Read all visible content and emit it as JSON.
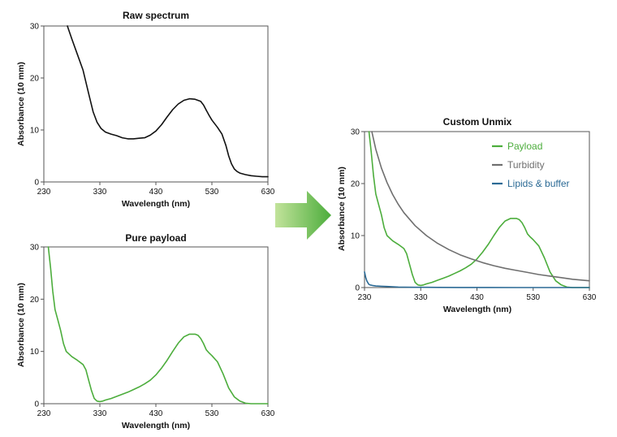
{
  "chart_data": [
    {
      "id": "raw",
      "type": "line",
      "title": "Raw spectrum",
      "xlabel": "Wavelength (nm)",
      "ylabel": "Absorbance (10 mm)",
      "xlim": [
        230,
        630
      ],
      "ylim": [
        0,
        30
      ],
      "xticks": [
        "230",
        "330",
        "430",
        "530",
        "630"
      ],
      "yticks": [
        "0",
        "10",
        "20",
        "30"
      ],
      "grid": false,
      "series": [
        {
          "color": "#111111",
          "x": [
            272,
            280,
            290,
            300,
            310,
            318,
            325,
            332,
            340,
            350,
            360,
            370,
            380,
            390,
            400,
            410,
            420,
            430,
            440,
            450,
            460,
            470,
            480,
            490,
            500,
            510,
            515,
            520,
            525,
            530,
            540,
            548,
            555,
            560,
            565,
            570,
            575,
            580,
            590,
            600,
            610,
            620,
            630
          ],
          "y": [
            30,
            27.5,
            24.5,
            21.5,
            17,
            13.5,
            11.5,
            10.3,
            9.6,
            9.2,
            8.9,
            8.5,
            8.3,
            8.3,
            8.4,
            8.5,
            9.0,
            9.8,
            11,
            12.5,
            13.9,
            15.0,
            15.7,
            16.0,
            15.9,
            15.5,
            14.8,
            13.8,
            12.8,
            11.9,
            10.5,
            9.2,
            7.0,
            5.0,
            3.5,
            2.5,
            2.0,
            1.7,
            1.4,
            1.2,
            1.1,
            1.0,
            1.0
          ]
        }
      ]
    },
    {
      "id": "pure",
      "type": "line",
      "title": "Pure payload",
      "xlabel": "Wavelength (nm)",
      "ylabel": "Absorbance (10 mm)",
      "xlim": [
        230,
        630
      ],
      "ylim": [
        0,
        30
      ],
      "xticks": [
        "230",
        "330",
        "430",
        "530",
        "630"
      ],
      "yticks": [
        "0",
        "10",
        "20",
        "30"
      ],
      "grid": false,
      "series": [
        {
          "color": "#4cad3c",
          "x": [
            238,
            242,
            246,
            250,
            255,
            260,
            265,
            270,
            280,
            290,
            300,
            305,
            310,
            315,
            320,
            325,
            330,
            335,
            340,
            350,
            360,
            370,
            380,
            390,
            400,
            410,
            420,
            430,
            440,
            450,
            460,
            470,
            480,
            490,
            500,
            505,
            510,
            515,
            520,
            525,
            530,
            540,
            550,
            560,
            570,
            580,
            590,
            600,
            610,
            620,
            630
          ],
          "y": [
            30,
            26,
            21.5,
            18,
            16,
            14,
            11.5,
            10.0,
            9.0,
            8.3,
            7.5,
            6.5,
            4.5,
            2.5,
            1.0,
            0.5,
            0.4,
            0.5,
            0.7,
            1.0,
            1.4,
            1.8,
            2.2,
            2.7,
            3.2,
            3.8,
            4.5,
            5.5,
            6.8,
            8.3,
            10.0,
            11.6,
            12.8,
            13.3,
            13.3,
            13.1,
            12.5,
            11.5,
            10.3,
            9.7,
            9.2,
            8.0,
            5.7,
            3.0,
            1.3,
            0.5,
            0.1,
            0.0,
            0.0,
            0.0,
            0.0
          ]
        }
      ]
    },
    {
      "id": "unmix",
      "type": "line",
      "title": "Custom Unmix",
      "xlabel": "Wavelength (nm)",
      "ylabel": "Absorbance (10 mm)",
      "xlim": [
        230,
        630
      ],
      "ylim": [
        0,
        30
      ],
      "xticks": [
        "230",
        "330",
        "430",
        "530",
        "630"
      ],
      "yticks": [
        "0",
        "10",
        "20",
        "30"
      ],
      "grid": false,
      "legend": "top-right",
      "series": [
        {
          "name": "Payload",
          "color": "#4cad3c",
          "x": [
            238,
            242,
            246,
            250,
            255,
            260,
            265,
            270,
            280,
            290,
            300,
            305,
            310,
            315,
            320,
            325,
            330,
            335,
            340,
            350,
            360,
            370,
            380,
            390,
            400,
            410,
            420,
            430,
            440,
            450,
            460,
            470,
            480,
            490,
            500,
            505,
            510,
            515,
            520,
            525,
            530,
            540,
            550,
            560,
            570,
            580,
            590,
            600,
            610,
            620,
            630
          ],
          "y": [
            30,
            26,
            21.5,
            18,
            16,
            14,
            11.5,
            10.0,
            9.0,
            8.3,
            7.5,
            6.5,
            4.5,
            2.5,
            1.0,
            0.5,
            0.4,
            0.5,
            0.7,
            1.0,
            1.4,
            1.8,
            2.2,
            2.7,
            3.2,
            3.8,
            4.5,
            5.5,
            6.8,
            8.3,
            10.0,
            11.6,
            12.8,
            13.3,
            13.3,
            13.1,
            12.5,
            11.5,
            10.3,
            9.7,
            9.2,
            8.0,
            5.7,
            3.0,
            1.3,
            0.5,
            0.1,
            0.0,
            0.0,
            0.0,
            0.0
          ]
        },
        {
          "name": "Turbidity",
          "color": "#6f6f6f",
          "x": [
            243,
            250,
            260,
            270,
            280,
            290,
            300,
            320,
            340,
            360,
            380,
            400,
            420,
            440,
            460,
            480,
            500,
            520,
            540,
            560,
            580,
            600,
            630
          ],
          "y": [
            30,
            26.6,
            23.0,
            20.2,
            17.9,
            16.0,
            14.4,
            11.9,
            10.0,
            8.5,
            7.3,
            6.3,
            5.5,
            4.8,
            4.2,
            3.7,
            3.3,
            2.9,
            2.5,
            2.2,
            1.9,
            1.6,
            1.3
          ]
        },
        {
          "name": "Lipids & buffer",
          "color": "#2b6a95",
          "x": [
            230,
            232,
            234,
            236,
            238,
            240,
            244,
            250,
            260,
            270,
            280,
            290,
            300,
            320,
            340,
            360,
            400,
            450,
            500,
            550,
            600,
            630
          ],
          "y": [
            3.0,
            2.0,
            1.3,
            0.9,
            0.6,
            0.5,
            0.4,
            0.3,
            0.25,
            0.2,
            0.15,
            0.1,
            0.08,
            0.05,
            0.04,
            0.03,
            0.02,
            0.01,
            0.0,
            0.0,
            0.0,
            0.0
          ]
        }
      ]
    }
  ],
  "arrow": {
    "name": "process-arrow",
    "color_start": "#c2e39b",
    "color_end": "#4cad3c"
  }
}
